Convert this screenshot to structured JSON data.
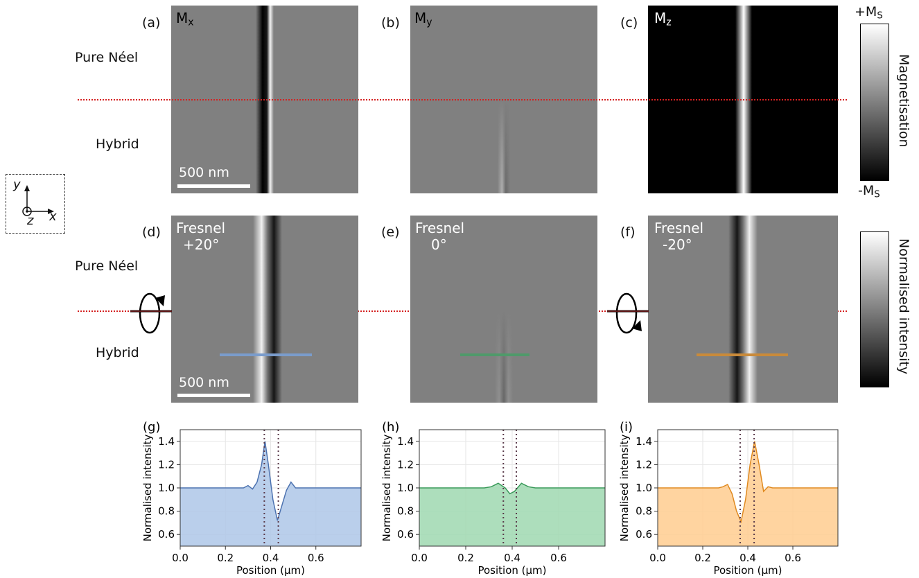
{
  "panels_top": [
    {
      "label": "(a)",
      "component": "M",
      "subscript": "x"
    },
    {
      "label": "(b)",
      "component": "M",
      "subscript": "y"
    },
    {
      "label": "(c)",
      "component": "M",
      "subscript": "z"
    }
  ],
  "panels_mid": [
    {
      "label": "(d)",
      "title": "Fresnel",
      "angle": "+20°"
    },
    {
      "label": "(e)",
      "title": "Fresnel",
      "angle": "0°"
    },
    {
      "label": "(f)",
      "title": "Fresnel",
      "angle": "-20°"
    }
  ],
  "row_labels": {
    "pure": "Pure Néel",
    "hybrid": "Hybrid"
  },
  "scalebar": "500 nm",
  "axes_icon": {
    "y": "y",
    "z": "z",
    "x": "x"
  },
  "colorbar_top": {
    "title": "Magnetisation",
    "max_main": "+M",
    "max_sub": "S",
    "min_main": "-M",
    "min_sub": "S"
  },
  "colorbar_mid": {
    "title": "Normalised intensity"
  },
  "line_colors": {
    "g": "#4c72b0",
    "h": "#3a9a5a",
    "i": "#e08a20"
  },
  "plots": [
    {
      "label": "(g)",
      "ylabel": "Normalised intensity",
      "xlabel": "Position (μm)"
    },
    {
      "label": "(h)",
      "ylabel": "Normalised intensity",
      "xlabel": "Position (μm)"
    },
    {
      "label": "(i)",
      "ylabel": "Normalised intensity",
      "xlabel": "Position (μm)"
    }
  ],
  "xticks": [
    "0.0",
    "0.2",
    "0.4",
    "0.6"
  ],
  "yticks": [
    "0.6",
    "0.8",
    "1.0",
    "1.2",
    "1.4"
  ],
  "chart_data": [
    {
      "type": "area",
      "title": "(g)",
      "xlabel": "Position (μm)",
      "ylabel": "Normalised intensity",
      "xlim": [
        0,
        0.8
      ],
      "ylim": [
        0.5,
        1.5
      ],
      "fill": "#aec7e8",
      "line": "#4c72b0",
      "x": [
        0.0,
        0.28,
        0.3,
        0.32,
        0.34,
        0.36,
        0.375,
        0.39,
        0.41,
        0.43,
        0.45,
        0.47,
        0.49,
        0.51,
        0.53,
        0.8
      ],
      "y": [
        1.0,
        1.0,
        1.02,
        0.99,
        1.05,
        1.2,
        1.4,
        1.2,
        0.9,
        0.72,
        0.85,
        0.98,
        1.05,
        1.0,
        1.0,
        1.0
      ],
      "markers_x": [
        0.372,
        0.434
      ]
    },
    {
      "type": "area",
      "title": "(h)",
      "xlabel": "Position (μm)",
      "ylabel": "Normalised intensity",
      "xlim": [
        0,
        0.8
      ],
      "ylim": [
        0.5,
        1.5
      ],
      "fill": "#9fd8b0",
      "line": "#3a9a5a",
      "x": [
        0.0,
        0.28,
        0.31,
        0.34,
        0.37,
        0.39,
        0.41,
        0.44,
        0.47,
        0.5,
        0.8
      ],
      "y": [
        1.0,
        1.0,
        1.01,
        1.04,
        1.0,
        0.95,
        0.97,
        1.04,
        1.01,
        1.0,
        1.0
      ],
      "markers_x": [
        0.362,
        0.418
      ]
    },
    {
      "type": "area",
      "title": "(i)",
      "xlabel": "Position (μm)",
      "ylabel": "Normalised intensity",
      "xlim": [
        0,
        0.8
      ],
      "ylim": [
        0.5,
        1.5
      ],
      "fill": "#ffcc8f",
      "line": "#e08a20",
      "x": [
        0.0,
        0.27,
        0.29,
        0.31,
        0.33,
        0.35,
        0.37,
        0.39,
        0.41,
        0.43,
        0.45,
        0.47,
        0.49,
        0.51,
        0.8
      ],
      "y": [
        1.0,
        1.0,
        1.01,
        1.03,
        0.95,
        0.8,
        0.71,
        0.9,
        1.2,
        1.4,
        1.2,
        0.97,
        1.01,
        1.0,
        1.0
      ],
      "markers_x": [
        0.366,
        0.428
      ]
    }
  ]
}
